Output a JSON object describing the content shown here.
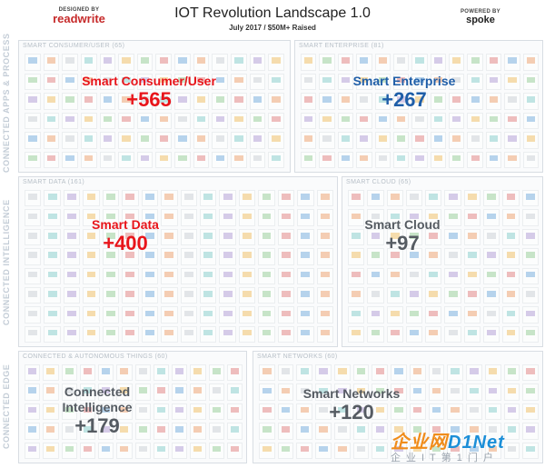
{
  "header": {
    "designed_by": "DESIGNED BY",
    "brand_left": "readwrite",
    "title": "IOT Revolution Landscape 1.0",
    "subtitle": "July 2017 / $50M+ Raised",
    "powered_by": "POWERED BY",
    "brand_right": "spoke"
  },
  "side_labels": {
    "apps": "CONNECTED APPS & PROCESS",
    "intelligence": "CONNECTED INTELLIGENCE",
    "edge": "CONNECTED EDGE"
  },
  "sections": {
    "consumer": {
      "panel_title": "SMART CONSUMER/USER (65)",
      "name": "Smart Consumer/User",
      "count": "+565"
    },
    "enterprise": {
      "panel_title": "SMART ENTERPRISE (81)",
      "name": "Smart Enterprise",
      "count": "+267"
    },
    "data": {
      "panel_title": "SMART DATA (161)",
      "name": "Smart Data",
      "count": "+400"
    },
    "cloud": {
      "panel_title": "SMART CLOUD (65)",
      "name": "Smart Cloud",
      "count": "+97"
    },
    "things": {
      "panel_title": "CONNECTED & AUTONOMOUS THINGS (60)",
      "name_line1": "Connected",
      "name_line2": "Intelligence",
      "count": "+179"
    },
    "networks": {
      "panel_title": "SMART NETWORKS (60)",
      "name": "Smart Networks",
      "count": "+120"
    }
  },
  "watermark": {
    "main_a": "企业网",
    "main_b": "D1Net",
    "sub": "企业IT第1门户"
  },
  "colors": {
    "red": "#e8141a",
    "blue": "#1f5ea8",
    "gray": "#555b62",
    "watermark_orange": "#f08c1a",
    "watermark_blue": "#1c8fd8"
  }
}
